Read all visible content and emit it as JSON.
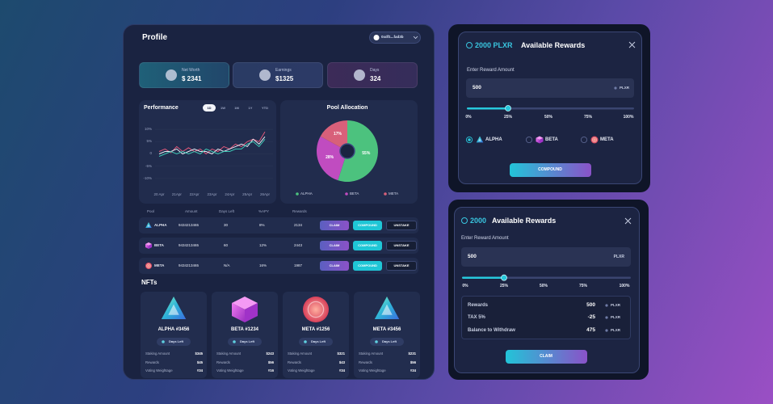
{
  "profile": {
    "title": "Profile",
    "wallet": "0xdf1...fad3b",
    "stats": [
      {
        "label": "Net Worth",
        "value": "$ 2341"
      },
      {
        "label": "Earnings",
        "value": "$1325"
      },
      {
        "label": "Days",
        "value": "324"
      }
    ],
    "performance": {
      "type": "line",
      "title": "Performance",
      "tabs": [
        "1D",
        "1W",
        "1M",
        "1Y",
        "YTD"
      ],
      "categories": [
        "20 Apr",
        null,
        null,
        "21Apr",
        null,
        null,
        "22Apr",
        null,
        null,
        "23Apr",
        null,
        null,
        "24Apr",
        null,
        null,
        "25Apr",
        null,
        null,
        "26Apr"
      ],
      "series": [
        {
          "color": "#e0587a",
          "values": [
            1,
            2,
            0.5,
            3,
            1,
            2.5,
            1,
            2,
            0,
            2,
            1,
            3,
            2,
            4,
            3,
            5,
            6,
            5,
            9
          ]
        },
        {
          "color": "#e6eaf4",
          "values": [
            0,
            1,
            1,
            2,
            0,
            1,
            2,
            1,
            1,
            0,
            2,
            1,
            2,
            3,
            4,
            3,
            6,
            4,
            7
          ]
        },
        {
          "color": "#3ec7b5",
          "values": [
            -1,
            0,
            1,
            0,
            1,
            0,
            1,
            0,
            2,
            1,
            0,
            1,
            1,
            2,
            2,
            4,
            5,
            3,
            6
          ]
        }
      ],
      "ylim": [
        -12,
        12
      ],
      "yticks": [
        {
          "value": 10,
          "label": "10%"
        },
        {
          "value": 5,
          "label": "5%"
        },
        0,
        {
          "value": -5,
          "label": "-5%"
        },
        {
          "value": -10,
          "label": "-10%"
        }
      ],
      "grid": true
    },
    "pool": {
      "type": "pie",
      "title": "Pool Allocation",
      "categories": [
        "ALPHA",
        "BETA",
        "META"
      ],
      "values": [
        55,
        28,
        17
      ],
      "value_labels": [
        "55%",
        "28%",
        "17%"
      ],
      "colors": [
        "#4cc27e",
        "#c04cc0",
        "#d8607a"
      ]
    },
    "table": {
      "columns": [
        "Pool",
        "Amount",
        "Days Left",
        "%APY",
        "Rewards"
      ],
      "rows": [
        [
          "ALPHA",
          "9434213465",
          "30",
          "8%",
          "2134"
        ],
        [
          "BETA",
          "9434213465",
          "60",
          "12%",
          "2443"
        ],
        [
          "META",
          "9434213465",
          "N/A",
          "16%",
          "1987"
        ]
      ],
      "actions": [
        "CLAIM",
        "COMPOUND",
        "UNSTAKE"
      ]
    },
    "nfts": {
      "title": "NFTs",
      "cards": [
        {
          "name": "ALPHA #3456",
          "button": "Days Left",
          "rows": [
            [
              "Staking Amount",
              "$345"
            ],
            [
              "Rewards",
              "$45"
            ],
            [
              "Voting Weightage",
              "#34"
            ]
          ]
        },
        {
          "name": "BETA #1234",
          "button": "Days Left",
          "rows": [
            [
              "Staking Amount",
              "$243"
            ],
            [
              "Rewards",
              "$56"
            ],
            [
              "Voting Weightage",
              "#16"
            ]
          ]
        },
        {
          "name": "META #1256",
          "button": "Days Left",
          "rows": [
            [
              "Staking Amount",
              "$321"
            ],
            [
              "Rewards",
              "$43"
            ],
            [
              "Voting Weightage",
              "#34"
            ]
          ]
        },
        {
          "name": "META #3456",
          "button": "Days Left",
          "rows": [
            [
              "Staking Amount",
              "$231"
            ],
            [
              "Rewards",
              "$56"
            ],
            [
              "Voting Weightage",
              "#34"
            ]
          ]
        }
      ]
    }
  },
  "compound_modal": {
    "amount": "2000 PLXR",
    "title": "Available Rewards",
    "input_label": "Enter Reward Amount",
    "input_value": "500",
    "unit": "PLXR",
    "slider_labels": [
      "0%",
      "25%",
      "50%",
      "75%",
      "100%"
    ],
    "options": [
      "ALPHA",
      "BETA",
      "META"
    ],
    "button": "COMPOUND"
  },
  "claim_modal": {
    "amount": "2000",
    "title": "Available Rewards",
    "input_label": "Enter Reward Amount",
    "input_value": "500",
    "unit": "PLXR",
    "slider_labels": [
      "0%",
      "25%",
      "50%",
      "75%",
      "100%"
    ],
    "summary": [
      {
        "label": "Rewards",
        "value": "500",
        "unit": "PLXR"
      },
      {
        "label": "TAX 5%",
        "value": "-25",
        "unit": "PLXR"
      },
      {
        "label": "Balance to Withdraw",
        "value": "475",
        "unit": "PLXR"
      }
    ],
    "button": "CLAIM"
  }
}
